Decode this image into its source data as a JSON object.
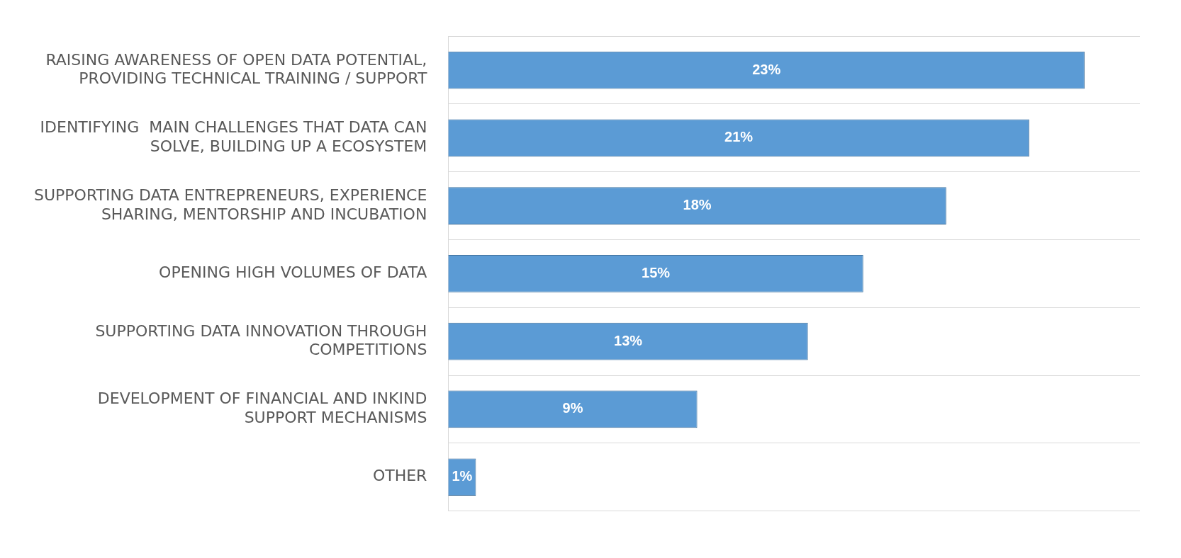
{
  "chart_data": {
    "type": "bar",
    "orientation": "horizontal",
    "categories": [
      "RAISING AWARENESS OF OPEN DATA POTENTIAL, PROVIDING TECHNICAL TRAINING / SUPPORT",
      "IDENTIFYING  MAIN CHALLENGES THAT DATA CAN SOLVE, BUILDING UP A ECOSYSTEM",
      "SUPPORTING DATA ENTREPRENEURS, EXPERIENCE SHARING, MENTORSHIP AND INCUBATION",
      "OPENING HIGH VOLUMES OF DATA",
      "SUPPORTING DATA INNOVATION THROUGH COMPETITIONS",
      "DEVELOPMENT OF FINANCIAL AND INKIND SUPPORT MECHANISMS",
      "OTHER"
    ],
    "values": [
      23,
      21,
      18,
      15,
      13,
      9,
      1
    ],
    "value_labels": [
      "23%",
      "21%",
      "18%",
      "15%",
      "13%",
      "9%",
      "1%"
    ],
    "color": "#5b9bd5",
    "grid": "y"
  }
}
